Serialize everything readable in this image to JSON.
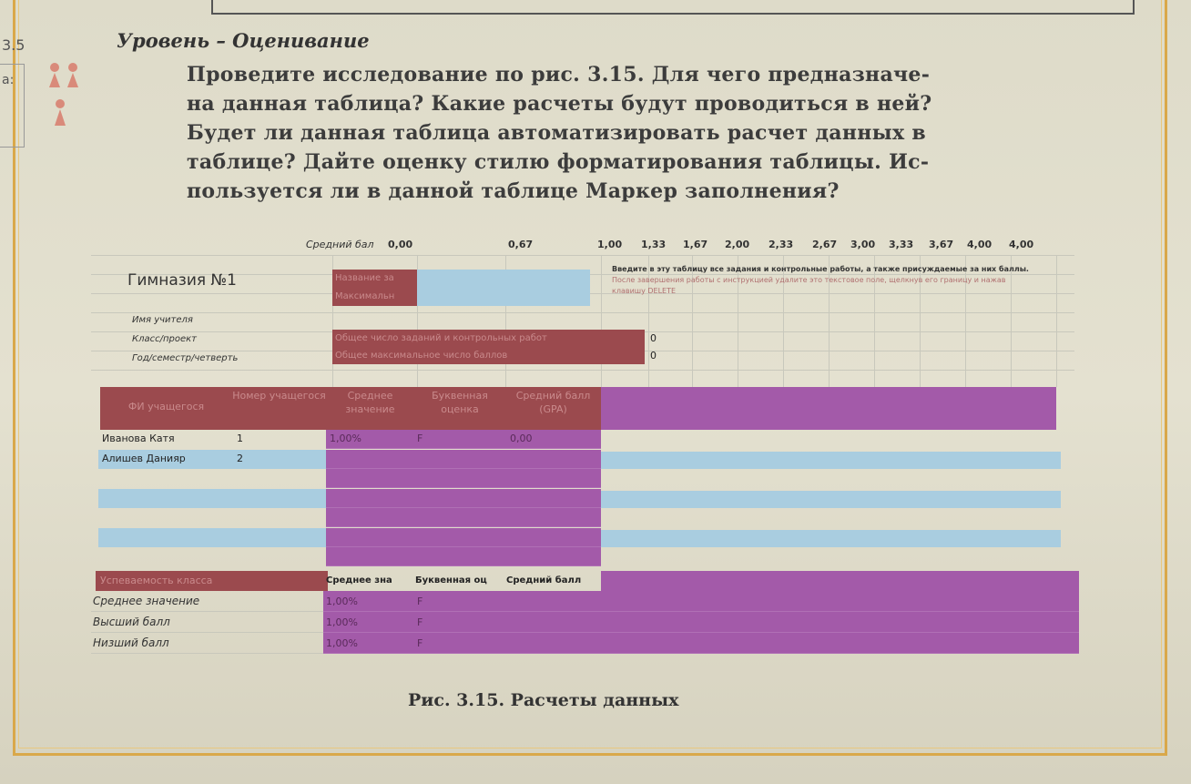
{
  "side": {
    "number": "3.5",
    "letter": "а:"
  },
  "section": {
    "level": "Уровень – Оценивание"
  },
  "task": {
    "lines": [
      "Проведите исследование по рис. 3.15. Для чего предназначе-",
      "на данная таблица? Какие расчеты будут проводиться в ней?",
      "Будет ли данная таблица автоматизировать расчет данных в",
      "таблице? Дайте оценку стилю форматирования таблицы. Ис-",
      "пользуется ли в данной таблице Маркер заполнения?"
    ]
  },
  "sheet": {
    "gpa_label": "Средний бал",
    "gpa_values": [
      "0,00",
      "0,67",
      "1,00",
      "1,33",
      "1,67",
      "2,00",
      "2,33",
      "2,67",
      "3,00",
      "3,33",
      "3,67",
      "4,00",
      "4,00"
    ],
    "school": "Гимназия №1",
    "assignment_name": "Название за",
    "max_label": "Максимальн",
    "instruction_dark": "Введите в эту таблицу все задания и контрольные работы, а также присуждаемые за них баллы.",
    "instruction_light": "После завершения работы с инструкцией удалите это текстовое поле, щелкнув его границу и нажав клавишу DELETE",
    "teacher_label": "Имя учителя",
    "class_label": "Класс/проект",
    "period_label": "Год/семестр/четверть",
    "total_tasks_label": "Общее число заданий и контрольных работ",
    "total_points_label": "Общее максимальное число баллов",
    "total_tasks_value": "0",
    "total_points_value": "0",
    "columns": [
      "ФИ учащегося",
      "Номер учащегося",
      "Среднее значение",
      "Буквенная оценка",
      "Средний балл (GPA)"
    ],
    "students": [
      {
        "name": "Иванова Катя",
        "number": "1",
        "avg": "1,00%",
        "letter": "F",
        "gpa": "0,00"
      },
      {
        "name": "Алишев Данияр",
        "number": "2",
        "avg": "",
        "letter": "",
        "gpa": ""
      }
    ],
    "summary_title": "Успеваемость класса",
    "summary_columns": [
      "Среднее зна",
      "Буквенная оц",
      "Средний балл"
    ],
    "summary_rows": [
      {
        "label": "Среднее значение",
        "avg": "1,00%",
        "letter": "F"
      },
      {
        "label": "Высший балл",
        "avg": "1,00%",
        "letter": "F"
      },
      {
        "label": "Низший балл",
        "avg": "1,00%",
        "letter": "F"
      }
    ]
  },
  "caption": "Рис. 3.15. Расчеты данных",
  "colors": {
    "header_red": "#9b4a4e",
    "band_blue": "#a9cde0",
    "calc_purple": "#a35aa9",
    "frame": "#d9a84a"
  }
}
